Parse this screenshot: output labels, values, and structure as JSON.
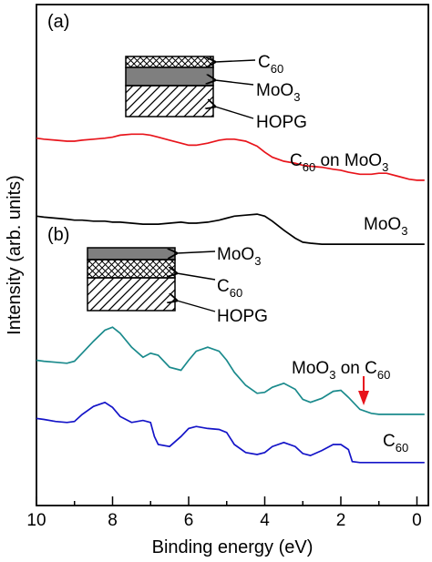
{
  "chart_data": {
    "type": "line",
    "xlabel": "Binding energy (eV)",
    "ylabel": "Intensity (arb. units)",
    "xlim": [
      10,
      -0.3
    ],
    "x_reversed": true,
    "xticks": [
      10,
      8,
      6,
      4,
      2,
      0
    ],
    "grid": false,
    "panels": [
      {
        "label": "(a)",
        "inset_layers": [
          {
            "label_main": "C",
            "label_sub": "60",
            "pattern": "crosshatch"
          },
          {
            "label_main": "MoO",
            "label_sub": "3",
            "pattern": "solid-gray"
          },
          {
            "label_main": "HOPG",
            "label_sub": "",
            "pattern": "diagonal"
          }
        ],
        "series": [
          {
            "label_main": "C",
            "label_sub1": "60",
            "label_mid": " on MoO",
            "label_sub2": "3",
            "color": "#e8141b",
            "x": [
              10,
              9.8,
              9.5,
              9.2,
              9.0,
              8.8,
              8.5,
              8.2,
              8.0,
              7.8,
              7.5,
              7.2,
              7.0,
              6.8,
              6.5,
              6.2,
              6.0,
              5.8,
              5.5,
              5.2,
              5.0,
              4.8,
              4.5,
              4.2,
              4.0,
              3.8,
              3.5,
              3.2,
              3.0,
              2.8,
              2.5,
              2.2,
              2.0,
              1.8,
              1.5,
              1.2,
              1.0,
              0.8,
              0.5,
              0.2,
              0.0,
              -0.2
            ],
            "y": [
              0.63,
              0.62,
              0.61,
              0.6,
              0.6,
              0.61,
              0.62,
              0.63,
              0.64,
              0.66,
              0.67,
              0.67,
              0.66,
              0.64,
              0.61,
              0.58,
              0.56,
              0.56,
              0.58,
              0.61,
              0.62,
              0.62,
              0.6,
              0.55,
              0.49,
              0.44,
              0.4,
              0.38,
              0.36,
              0.35,
              0.34,
              0.32,
              0.31,
              0.29,
              0.27,
              0.27,
              0.28,
              0.28,
              0.25,
              0.22,
              0.21,
              0.21
            ]
          },
          {
            "label_main": "MoO",
            "label_sub": "3",
            "color": "#000000",
            "x": [
              10,
              9.8,
              9.5,
              9.2,
              9.0,
              8.8,
              8.5,
              8.2,
              8.0,
              7.8,
              7.5,
              7.2,
              7.0,
              6.8,
              6.5,
              6.2,
              6.0,
              5.8,
              5.5,
              5.2,
              5.0,
              4.8,
              4.5,
              4.2,
              4.0,
              3.8,
              3.5,
              3.2,
              3.0,
              2.8,
              2.5,
              2.2,
              2.0,
              1.8,
              1.5,
              1.2,
              1.0,
              0.8,
              0.5,
              0.2,
              0.0,
              -0.2
            ],
            "y": [
              0.27,
              0.26,
              0.25,
              0.24,
              0.23,
              0.23,
              0.22,
              0.22,
              0.21,
              0.21,
              0.2,
              0.19,
              0.19,
              0.19,
              0.2,
              0.21,
              0.2,
              0.2,
              0.21,
              0.23,
              0.25,
              0.27,
              0.28,
              0.29,
              0.27,
              0.22,
              0.13,
              0.05,
              0.01,
              0.0,
              -0.01,
              -0.01,
              -0.01,
              -0.01,
              -0.01,
              -0.01,
              -0.01,
              -0.01,
              -0.01,
              -0.01,
              -0.01,
              -0.01
            ]
          }
        ]
      },
      {
        "label": "(b)",
        "inset_layers": [
          {
            "label_main": "MoO",
            "label_sub": "3",
            "pattern": "solid-gray"
          },
          {
            "label_main": "C",
            "label_sub": "60",
            "pattern": "crosshatch"
          },
          {
            "label_main": "HOPG",
            "label_sub": "",
            "pattern": "diagonal"
          }
        ],
        "annotations": [
          {
            "type": "arrow",
            "x": 1.4,
            "color": "#e8141b",
            "direction": "down"
          }
        ],
        "series": [
          {
            "label_main": "MoO",
            "label_sub1": "3",
            "label_mid": " on C",
            "label_sub2": "60",
            "color": "#1a8a8c",
            "x": [
              10,
              9.8,
              9.5,
              9.2,
              9.0,
              8.8,
              8.5,
              8.2,
              8.0,
              7.8,
              7.5,
              7.2,
              7.0,
              6.8,
              6.5,
              6.2,
              6.0,
              5.8,
              5.5,
              5.2,
              5.0,
              4.8,
              4.5,
              4.2,
              4.0,
              3.8,
              3.5,
              3.2,
              3.0,
              2.8,
              2.5,
              2.2,
              2.0,
              1.8,
              1.5,
              1.2,
              1.0,
              0.8,
              0.5,
              0.2,
              0.0,
              -0.2
            ],
            "y": [
              0.55,
              0.54,
              0.53,
              0.52,
              0.54,
              0.62,
              0.74,
              0.85,
              0.88,
              0.82,
              0.68,
              0.58,
              0.62,
              0.6,
              0.48,
              0.45,
              0.55,
              0.64,
              0.68,
              0.64,
              0.55,
              0.43,
              0.3,
              0.22,
              0.23,
              0.28,
              0.32,
              0.26,
              0.16,
              0.13,
              0.17,
              0.24,
              0.25,
              0.18,
              0.06,
              0.02,
              0.01,
              0.01,
              0.01,
              0.01,
              0.01,
              0.01
            ]
          },
          {
            "label_main": "C",
            "label_sub": "60",
            "color": "#1414c8",
            "x": [
              10,
              9.8,
              9.5,
              9.2,
              9.0,
              8.8,
              8.5,
              8.2,
              8.0,
              7.8,
              7.5,
              7.2,
              7.0,
              6.9,
              6.8,
              6.5,
              6.2,
              6.0,
              5.8,
              5.5,
              5.2,
              5.0,
              4.8,
              4.5,
              4.2,
              4.0,
              3.8,
              3.5,
              3.2,
              3.0,
              2.8,
              2.5,
              2.2,
              2.0,
              1.8,
              1.7,
              1.5,
              1.2,
              1.0,
              0.8,
              0.5,
              0.2,
              0.0,
              -0.2
            ],
            "y": [
              0.36,
              0.35,
              0.33,
              0.32,
              0.33,
              0.4,
              0.48,
              0.52,
              0.47,
              0.38,
              0.32,
              0.34,
              0.32,
              0.18,
              0.1,
              0.08,
              0.18,
              0.26,
              0.28,
              0.26,
              0.25,
              0.22,
              0.1,
              0.02,
              0.0,
              0.02,
              0.08,
              0.12,
              0.08,
              0.01,
              -0.01,
              0.04,
              0.1,
              0.1,
              0.05,
              -0.07,
              -0.08,
              -0.08,
              -0.08,
              -0.08,
              -0.08,
              -0.08,
              -0.08,
              -0.08
            ]
          }
        ]
      }
    ]
  }
}
